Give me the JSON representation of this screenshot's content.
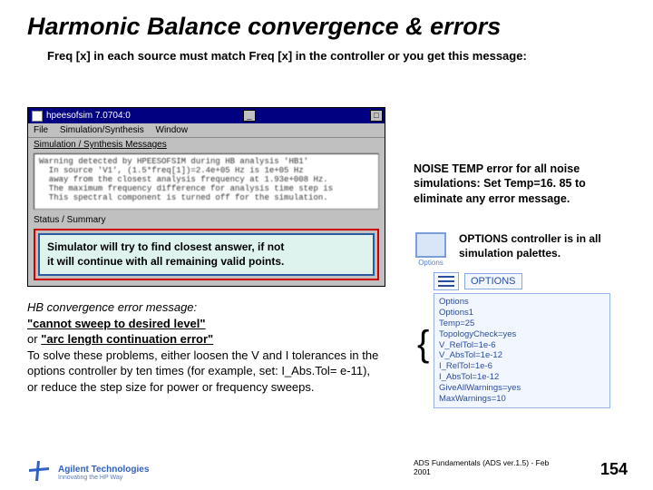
{
  "title": "Harmonic Balance convergence & errors",
  "subtitle": "Freq [x] in each source must match Freq [x] in the controller or you get this message:",
  "sim_window": {
    "titlebar": "hpeesofsim 7.0704:0",
    "menu": {
      "file": "File",
      "sim": "Simulation/Synthesis",
      "window": "Window"
    },
    "section": "Simulation / Synthesis Messages",
    "message_lines": [
      "Warning detected by HPEESOFSIM during HB analysis 'HB1'",
      "  In source 'V1', (1.5*freq[1])=2.4e+05 Hz is 1e+05 Hz",
      "  away from the closest analysis frequency at 1.93e+008 Hz.",
      "  The maximum frequency difference for analysis time step is",
      "  This spectral component is turned off for the simulation."
    ],
    "status": "Status / Summary",
    "answer_l1": "Simulator will try to find closest answer, if not",
    "answer_l2": "it will continue with all remaining valid points."
  },
  "noise_note": "NOISE TEMP error for all noise simulations: Set Temp=16. 85 to eliminate any error message.",
  "options_note": "OPTIONS controller is in all simulation palettes.",
  "options_icon_label": "Options",
  "options_block": {
    "heading": "OPTIONS",
    "lines": [
      "Options",
      "Options1",
      "Temp=25",
      "TopologyCheck=yes",
      "V_RelTol=1e-6",
      "V_AbsTol=1e-12",
      "I_RelTol=1e-6",
      "I_AbsTol=1e-12",
      "GiveAllWarnings=yes",
      "MaxWarnings=10"
    ]
  },
  "hb_text": {
    "lead": "HB convergence error message:",
    "quote1": "\"cannot sweep to desired level\"",
    "or": "or",
    "quote2": "\"arc length continuation error\"",
    "body": "To solve these problems, either loosen the V and I tolerances in the options controller by ten times (for example, set: I_Abs.Tol= e-11), or reduce the step size for power or frequency sweeps."
  },
  "footer": {
    "brand": "Agilent Technologies",
    "sub": "Innovating the HP Way",
    "caption": "ADS Fundamentals (ADS ver.1.5) - Feb 2001",
    "page": "154"
  },
  "colors": {
    "titlebar": "#000080",
    "redbox": "#d00000",
    "bluebox": "#2a5aa0",
    "mint": "#dff3ee",
    "opts_border": "#9ab6e4",
    "opts_bg": "#f2f6ff",
    "opts_text": "#2a4da0",
    "logo": "#3060c0"
  }
}
